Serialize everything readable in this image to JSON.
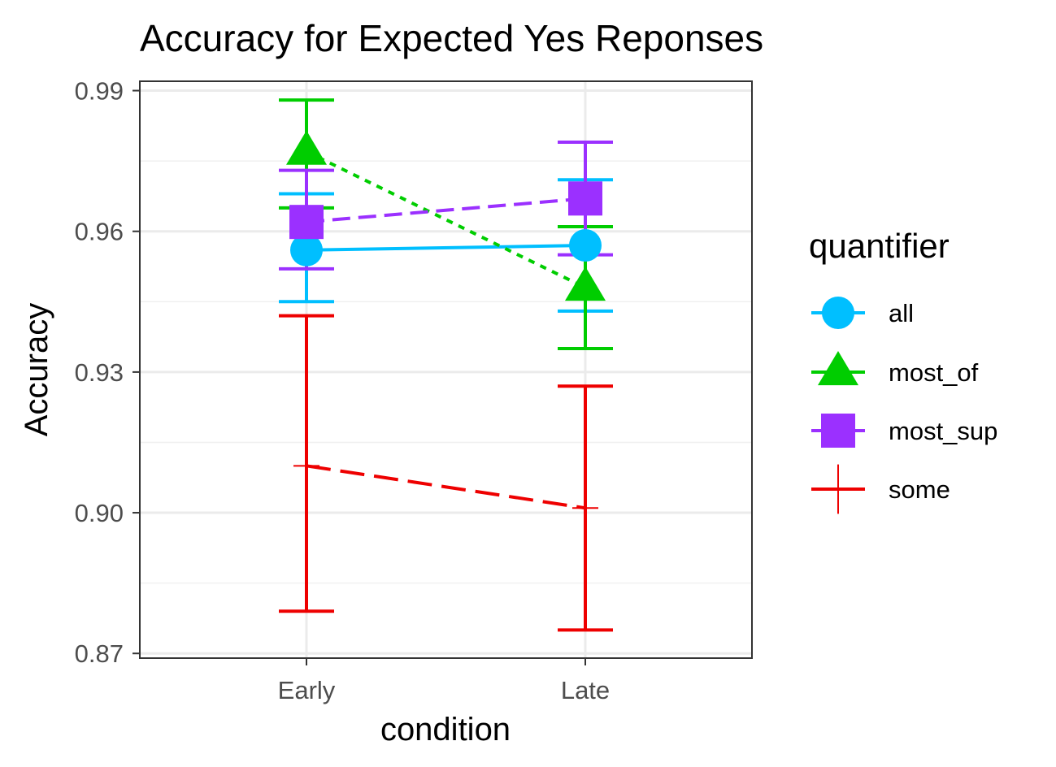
{
  "chart_data": {
    "type": "line",
    "title": "Accuracy for Expected Yes Reponses",
    "xlabel": "condition",
    "ylabel": "Accuracy",
    "categories": [
      "Early",
      "Late"
    ],
    "ylim": [
      0.869,
      0.992
    ],
    "yticks": [
      0.87,
      0.9,
      0.93,
      0.96,
      0.99
    ],
    "ytick_labels": [
      "0.87",
      "0.90",
      "0.93",
      "0.96",
      "0.99"
    ],
    "grid": true,
    "error_bars": true,
    "legend": {
      "title": "quantifier",
      "position": "right"
    },
    "series": [
      {
        "name": "all",
        "color": "#00BFFF",
        "shape": "circle",
        "linestyle": "solid",
        "values": [
          0.956,
          0.957
        ],
        "lower": [
          0.945,
          0.943
        ],
        "upper": [
          0.968,
          0.971
        ]
      },
      {
        "name": "most_of",
        "color": "#00CD00",
        "shape": "triangle",
        "linestyle": "dotted",
        "values": [
          0.977,
          0.948
        ],
        "lower": [
          0.965,
          0.935
        ],
        "upper": [
          0.988,
          0.961
        ]
      },
      {
        "name": "most_sup",
        "color": "#9B30FF",
        "shape": "square",
        "linestyle": "dashed",
        "values": [
          0.962,
          0.967
        ],
        "lower": [
          0.952,
          0.955
        ],
        "upper": [
          0.973,
          0.979
        ]
      },
      {
        "name": "some",
        "color": "#EE0000",
        "shape": "plus",
        "linestyle": "longdash",
        "values": [
          0.91,
          0.901
        ],
        "lower": [
          0.879,
          0.875
        ],
        "upper": [
          0.942,
          0.927
        ]
      }
    ]
  }
}
